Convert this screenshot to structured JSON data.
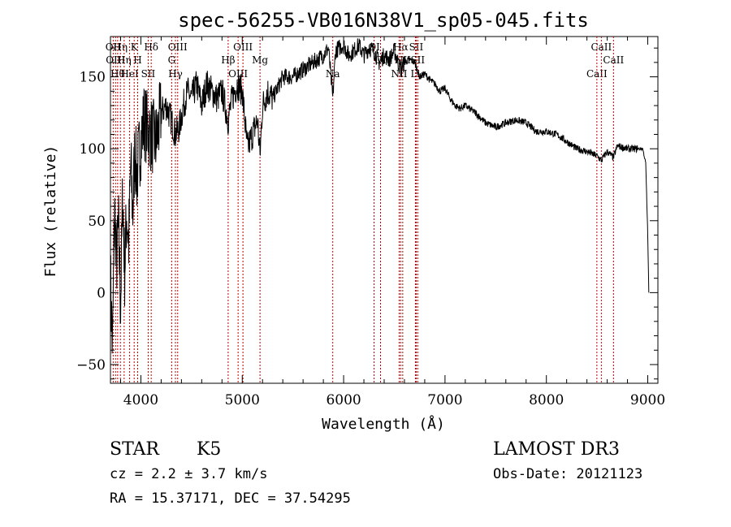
{
  "chart_data": {
    "type": "line",
    "title": "spec-56255-VB016N38V1_sp05-045.fits",
    "xlabel": "Wavelength (Å)",
    "ylabel": "Flux (relative)",
    "xlim": [
      3700,
      9100
    ],
    "ylim": [
      -63,
      178
    ],
    "x_ticks": [
      4000,
      5000,
      6000,
      7000,
      8000,
      9000
    ],
    "y_ticks": [
      -50,
      0,
      50,
      100,
      150
    ],
    "x_tick_labels": [
      "4000",
      "5000",
      "6000",
      "7000",
      "8000",
      "9000"
    ],
    "y_tick_labels": [
      "−50",
      "0",
      "50",
      "100",
      "150"
    ],
    "series": [
      {
        "name": "spectrum",
        "x": [
          3700,
          3720,
          3740,
          3760,
          3780,
          3800,
          3820,
          3840,
          3860,
          3880,
          3900,
          3920,
          3940,
          3960,
          3980,
          4000,
          4030,
          4060,
          4100,
          4150,
          4200,
          4250,
          4300,
          4340,
          4380,
          4420,
          4460,
          4500,
          4550,
          4600,
          4650,
          4700,
          4750,
          4800,
          4861,
          4900,
          4950,
          5000,
          5050,
          5100,
          5150,
          5175,
          5200,
          5250,
          5300,
          5400,
          5500,
          5600,
          5700,
          5800,
          5850,
          5893,
          5920,
          5950,
          6000,
          6050,
          6100,
          6150,
          6200,
          6250,
          6300,
          6350,
          6400,
          6450,
          6500,
          6563,
          6600,
          6650,
          6700,
          6750,
          6800,
          6850,
          6900,
          6950,
          7000,
          7050,
          7100,
          7150,
          7200,
          7300,
          7400,
          7500,
          7600,
          7700,
          7800,
          7900,
          8000,
          8100,
          8200,
          8300,
          8400,
          8500,
          8542,
          8600,
          8662,
          8700,
          8800,
          8900,
          8950,
          8980,
          9000,
          9010
        ],
        "y": [
          10,
          -40,
          60,
          20,
          45,
          -10,
          70,
          15,
          55,
          35,
          90,
          55,
          100,
          80,
          95,
          105,
          120,
          115,
          110,
          105,
          125,
          130,
          120,
          110,
          115,
          130,
          140,
          135,
          145,
          130,
          145,
          140,
          135,
          140,
          120,
          135,
          145,
          140,
          100,
          110,
          120,
          95,
          130,
          140,
          135,
          150,
          150,
          155,
          160,
          165,
          170,
          135,
          168,
          170,
          172,
          165,
          168,
          172,
          165,
          170,
          168,
          160,
          165,
          162,
          168,
          155,
          160,
          162,
          160,
          150,
          152,
          148,
          145,
          140,
          142,
          135,
          130,
          128,
          130,
          125,
          118,
          115,
          118,
          120,
          118,
          112,
          112,
          110,
          105,
          100,
          98,
          95,
          92,
          98,
          94,
          102,
          100,
          100,
          100,
          90,
          40,
          0
        ]
      }
    ],
    "line_marks": [
      {
        "x": 3727,
        "labels": [
          "OII"
        ]
      },
      {
        "x": 3750,
        "labels": [
          "OIII"
        ]
      },
      {
        "x": 3771,
        "labels": [
          "Hθ"
        ]
      },
      {
        "x": 3798,
        "labels": [
          "Hη"
        ]
      },
      {
        "x": 3835,
        "labels": [
          "Hη"
        ]
      },
      {
        "x": 3889,
        "labels": [
          "HeI"
        ]
      },
      {
        "x": 3934,
        "labels": [
          "K"
        ]
      },
      {
        "x": 3968,
        "labels": [
          "H"
        ]
      },
      {
        "x": 4072,
        "labels": [
          "SII"
        ]
      },
      {
        "x": 4102,
        "labels": [
          "Hδ"
        ]
      },
      {
        "x": 4304,
        "labels": [
          "G"
        ]
      },
      {
        "x": 4341,
        "labels": [
          "Hγ"
        ]
      },
      {
        "x": 4363,
        "labels": [
          "OIII"
        ]
      },
      {
        "x": 4861,
        "labels": [
          "Hβ"
        ]
      },
      {
        "x": 4959,
        "labels": [
          "OIII"
        ]
      },
      {
        "x": 5007,
        "labels": [
          "OIII"
        ]
      },
      {
        "x": 5175,
        "labels": [
          "Mg"
        ]
      },
      {
        "x": 5893,
        "labels": [
          "Na"
        ]
      },
      {
        "x": 6300,
        "labels": [
          "OI"
        ]
      },
      {
        "x": 6364,
        "labels": [
          "OI"
        ]
      },
      {
        "x": 6548,
        "labels": [
          "NII"
        ]
      },
      {
        "x": 6563,
        "labels": [
          "Hα"
        ]
      },
      {
        "x": 6583,
        "labels": [
          "NII"
        ]
      },
      {
        "x": 6708,
        "labels": [
          "Li"
        ]
      },
      {
        "x": 6716,
        "labels": [
          "SII"
        ]
      },
      {
        "x": 6731,
        "labels": [
          "SII"
        ]
      },
      {
        "x": 8498,
        "labels": [
          "CaII"
        ]
      },
      {
        "x": 8542,
        "labels": [
          "CaII"
        ]
      },
      {
        "x": 8662,
        "labels": [
          "CaII"
        ]
      }
    ],
    "line_mark_color": "#c00000"
  },
  "annotations": {
    "class": "STAR",
    "subclass": "K5",
    "survey": "LAMOST DR3",
    "cz": "cz = 2.2 ± 3.7 km/s",
    "obs_date": "Obs-Date: 20121123",
    "coords": "RA =  15.37171, DEC =  37.54295"
  }
}
